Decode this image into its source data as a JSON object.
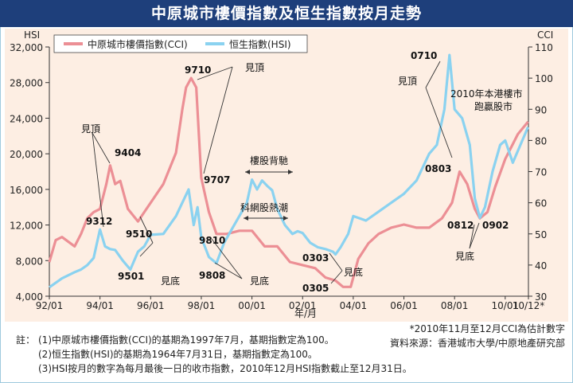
{
  "title": "中原城市樓價指數及恒生指數按月走勢",
  "colors": {
    "cci": "#ec8f95",
    "hsi": "#8ad2f0",
    "title_bg": "#1e3f7b",
    "panel_bg": "#fdeee3",
    "ink": "#222222"
  },
  "chart_data": {
    "type": "line",
    "title": "中原城市樓價指數及恒生指數按月走勢",
    "xlabel": "年/月",
    "y_left_label": "HSI",
    "y_right_label": "CCI",
    "y_left_lim": [
      4000,
      32000
    ],
    "y_right_lim": [
      30,
      110
    ],
    "y_left_ticks": [
      "4,000",
      "8,000",
      "12,000",
      "16,000",
      "20,000",
      "24,000",
      "28,000",
      "32,000"
    ],
    "y_right_ticks": [
      "30",
      "40",
      "50",
      "60",
      "70",
      "80",
      "90",
      "100",
      "110"
    ],
    "x_tick_labels": [
      "92/01",
      "94/01",
      "96/01",
      "98/01",
      "00/01",
      "02/01",
      "04/01",
      "06/01",
      "08/01",
      "10/01",
      "10/12*"
    ],
    "legend": [
      "中原城市樓價指數(CCI)",
      "恒生指數(HSI)"
    ],
    "series": [
      {
        "name": "中原城市樓價指數(CCI)",
        "axis": "right",
        "x": [
          1992.0,
          1992.25,
          1992.5,
          1993.0,
          1993.25,
          1993.5,
          1993.75,
          1994.0,
          1994.25,
          1994.4,
          1994.6,
          1994.8,
          1995.1,
          1995.5,
          1995.75,
          1996.0,
          1996.5,
          1997.0,
          1997.25,
          1997.4,
          1997.6,
          1997.8,
          1998.0,
          1998.3,
          1998.6,
          1999.0,
          1999.5,
          2000.0,
          2000.5,
          2001.0,
          2001.5,
          2002.0,
          2002.5,
          2002.9,
          2003.3,
          2003.6,
          2003.9,
          2004.2,
          2004.6,
          2005.0,
          2005.5,
          2006.0,
          2006.5,
          2007.0,
          2007.5,
          2007.9,
          2008.2,
          2008.5,
          2008.8,
          2009.0,
          2009.3,
          2009.6,
          2010.0,
          2010.5,
          2010.9
        ],
        "values": [
          41,
          48,
          49,
          46,
          50,
          55,
          57,
          58,
          66,
          72,
          66,
          67,
          58,
          54,
          57,
          60,
          66,
          76,
          90,
          97,
          100,
          97,
          68,
          57,
          50,
          50,
          51,
          51,
          46,
          46,
          41,
          40,
          39,
          36,
          35,
          33,
          33,
          42,
          47,
          50,
          52,
          53,
          52,
          52,
          55,
          60,
          70,
          66,
          58,
          55,
          57,
          65,
          74,
          82,
          86
        ]
      },
      {
        "name": "恒生指數(HSI)",
        "axis": "left",
        "x": [
          1992.0,
          1992.5,
          1993.0,
          1993.25,
          1993.5,
          1993.75,
          1994.0,
          1994.2,
          1994.4,
          1994.6,
          1994.9,
          1995.2,
          1995.5,
          1995.75,
          1996.0,
          1996.5,
          1997.0,
          1997.5,
          1997.7,
          1997.85,
          1998.0,
          1998.3,
          1998.6,
          1998.9,
          1999.2,
          1999.5,
          1999.8,
          2000.0,
          2000.2,
          2000.4,
          2000.6,
          2000.8,
          2001.0,
          2001.3,
          2001.6,
          2001.8,
          2002.0,
          2002.3,
          2002.6,
          2002.9,
          2003.2,
          2003.3,
          2003.5,
          2003.8,
          2004.0,
          2004.5,
          2005.0,
          2005.5,
          2006.0,
          2006.5,
          2007.0,
          2007.3,
          2007.6,
          2007.8,
          2008.0,
          2008.3,
          2008.6,
          2008.8,
          2009.0,
          2009.2,
          2009.5,
          2009.8,
          2010.0,
          2010.3,
          2010.6,
          2010.9
        ],
        "values": [
          5000,
          6000,
          6700,
          7000,
          7500,
          8300,
          11500,
          9600,
          9300,
          9200,
          8000,
          7000,
          9000,
          9600,
          10900,
          11000,
          13000,
          16000,
          12000,
          14000,
          10600,
          8400,
          7700,
          10000,
          11500,
          13000,
          14500,
          17100,
          16000,
          17000,
          16400,
          15900,
          13800,
          12000,
          11000,
          11300,
          11100,
          10000,
          9500,
          9300,
          9000,
          8700,
          9500,
          11000,
          13000,
          12500,
          13500,
          14500,
          15500,
          17000,
          20000,
          21000,
          25000,
          31100,
          25000,
          24000,
          21000,
          15000,
          12800,
          14000,
          18000,
          21000,
          21500,
          19000,
          21000,
          23000
        ]
      }
    ],
    "annotations": [
      "見頂",
      "9404",
      "9312",
      "9510",
      "9501",
      "見底",
      "9710",
      "見頂",
      "9707",
      "9810",
      "9808",
      "見底",
      "樓股背馳",
      "科網股熱潮",
      "0303",
      "0305",
      "見底",
      "0710",
      "見頂",
      "0803",
      "0812",
      "0902",
      "見底",
      "2010年本港樓市",
      "跑贏股市"
    ]
  },
  "notes": {
    "label": "註：",
    "n1": "(1)中原城市樓價指數(CCI)的基期為1997年7月，基期指數定為100。",
    "n2": "(2)恒生指數(HSI)的基期為1964年7月31日，基期指數定為100。",
    "n3": "(3)HSI按月的數字為每月最後一日的收市指數，2010年12月HSI指數截止至12月31日。",
    "footnote": "*2010年11月至12月CCI為估計數字",
    "source": "資料來源：香港城市大學/中原地產研究部"
  }
}
